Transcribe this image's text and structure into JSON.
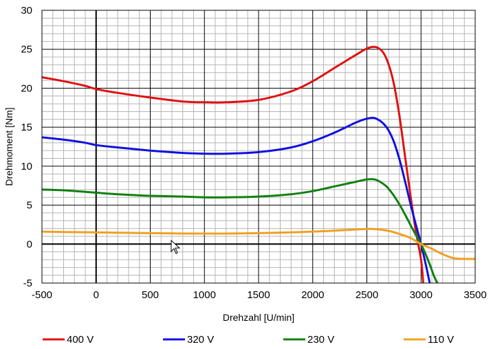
{
  "chart_data": {
    "type": "line",
    "xlabel": "Drehzahl [U/min]",
    "ylabel": "Drehmoment [Nm]",
    "xlim": [
      -500,
      3500
    ],
    "ylim": [
      -5,
      30
    ],
    "x_ticks": [
      "-500",
      "0",
      "500",
      "1000",
      "1500",
      "2000",
      "2500",
      "3000",
      "3500"
    ],
    "y_ticks": [
      "-5",
      "0",
      "5",
      "10",
      "15",
      "20",
      "25",
      "30"
    ],
    "grid": true,
    "legend_position": "bottom",
    "series": [
      {
        "name": "400 V",
        "color": "#e01010",
        "x": [
          -500,
          -300,
          -100,
          0,
          200,
          500,
          800,
          1000,
          1200,
          1500,
          1800,
          2000,
          2200,
          2400,
          2500,
          2560,
          2600,
          2650,
          2700,
          2750,
          2800,
          2850,
          2900,
          2950,
          3000,
          3020
        ],
        "y": [
          21.4,
          20.9,
          20.3,
          19.9,
          19.4,
          18.8,
          18.3,
          18.2,
          18.2,
          18.5,
          19.6,
          20.9,
          22.6,
          24.3,
          25.1,
          25.3,
          25.2,
          24.6,
          23.1,
          20.5,
          16.5,
          11.5,
          6.5,
          1.8,
          -2.0,
          -5.0
        ]
      },
      {
        "name": "320 V",
        "color": "#1010e0",
        "x": [
          -500,
          -300,
          -100,
          0,
          200,
          500,
          800,
          1000,
          1200,
          1500,
          1800,
          2000,
          2200,
          2400,
          2500,
          2560,
          2600,
          2650,
          2700,
          2750,
          2800,
          2850,
          2900,
          2950,
          3000,
          3050,
          3080
        ],
        "y": [
          13.7,
          13.4,
          13.0,
          12.7,
          12.4,
          12.0,
          11.7,
          11.6,
          11.6,
          11.8,
          12.4,
          13.2,
          14.3,
          15.6,
          16.1,
          16.2,
          16.0,
          15.5,
          14.6,
          13.1,
          10.9,
          8.2,
          5.3,
          2.6,
          0.0,
          -3.0,
          -5.0
        ]
      },
      {
        "name": "230 V",
        "color": "#108010",
        "x": [
          -500,
          -300,
          -100,
          0,
          200,
          500,
          800,
          1000,
          1200,
          1500,
          1800,
          2000,
          2200,
          2400,
          2500,
          2570,
          2620,
          2680,
          2740,
          2800,
          2860,
          2920,
          2980,
          3000,
          3040,
          3080,
          3120,
          3150
        ],
        "y": [
          7.0,
          6.9,
          6.7,
          6.6,
          6.4,
          6.2,
          6.1,
          6.0,
          6.0,
          6.1,
          6.4,
          6.8,
          7.4,
          8.0,
          8.3,
          8.3,
          8.0,
          7.4,
          6.4,
          5.1,
          3.6,
          2.0,
          0.5,
          0.0,
          -1.2,
          -2.6,
          -4.1,
          -5.0
        ]
      },
      {
        "name": "110 V",
        "color": "#f0a020",
        "x": [
          -500,
          -300,
          0,
          500,
          1000,
          1500,
          2000,
          2300,
          2500,
          2600,
          2700,
          2800,
          2900,
          3000,
          3100,
          3200,
          3300,
          3400,
          3500
        ],
        "y": [
          1.6,
          1.55,
          1.5,
          1.4,
          1.35,
          1.4,
          1.6,
          1.8,
          1.95,
          1.9,
          1.7,
          1.3,
          0.8,
          0.0,
          -0.6,
          -1.3,
          -1.8,
          -1.9,
          -1.9
        ]
      }
    ]
  }
}
